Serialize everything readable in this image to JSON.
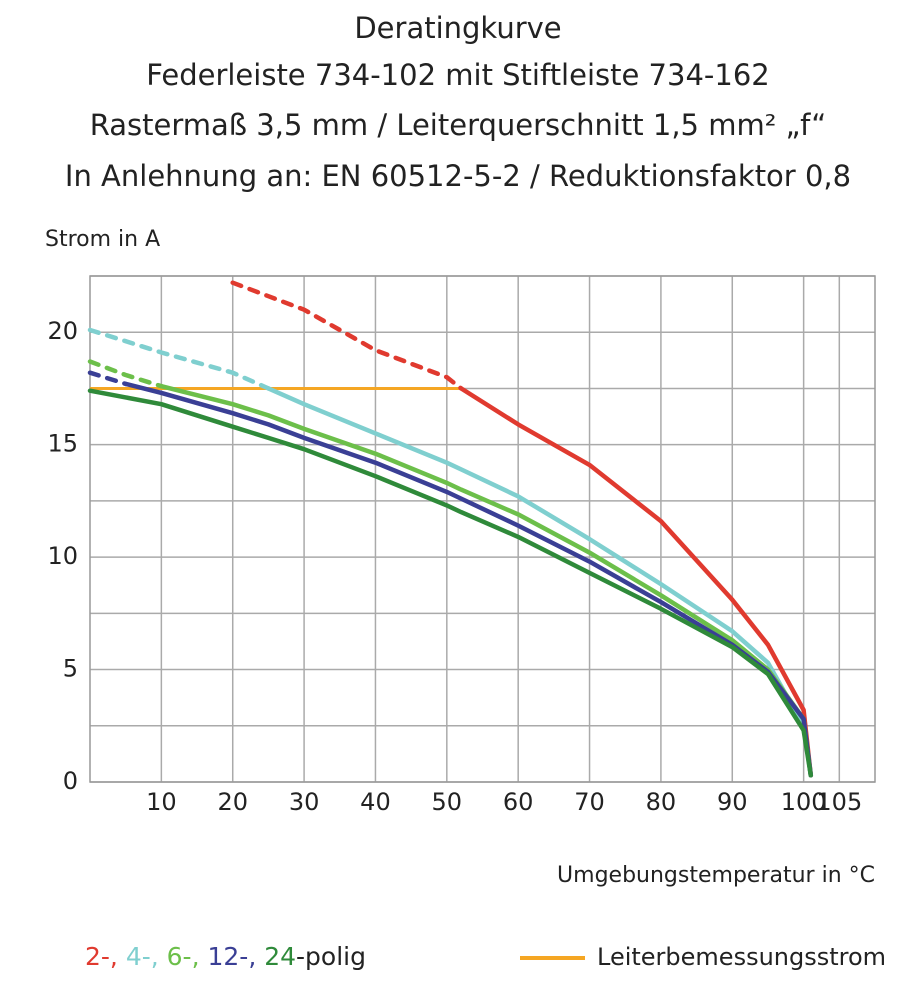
{
  "chart_data": {
    "type": "line",
    "title": [
      "Deratingkurve",
      "Federleiste 734-102 mit Stiftleiste 734-162",
      "Rastermaß 3,5 mm / Leiterquerschnitt 1,5 mm² „f“",
      "In Anlehnung an: EN 60512-5-2 / Reduktionsfaktor 0,8"
    ],
    "ylabel": "Strom in A",
    "xlabel": "Umgebungstemperatur in  °C",
    "x": [
      0,
      5,
      10,
      20,
      25,
      30,
      40,
      50,
      52,
      60,
      70,
      80,
      90,
      95,
      100,
      101
    ],
    "series": [
      {
        "name": "2-,",
        "color": "#e03a2f",
        "dashed_until": 52,
        "values": [
          null,
          null,
          null,
          22.2,
          21.6,
          21.0,
          19.2,
          18.0,
          17.5,
          15.9,
          14.1,
          11.6,
          8.1,
          6.1,
          3.2,
          0.3
        ]
      },
      {
        "name": "4-,",
        "color": "#7fcfcf",
        "dashed_until": 25,
        "values": [
          20.1,
          19.6,
          19.1,
          18.2,
          17.5,
          16.8,
          15.5,
          14.2,
          13.9,
          12.7,
          10.8,
          8.8,
          6.7,
          5.3,
          2.5,
          0.3
        ]
      },
      {
        "name": "6-,",
        "color": "#6cbf4a",
        "dashed_until": 10,
        "values": [
          18.7,
          18.1,
          17.6,
          16.8,
          16.3,
          15.7,
          14.6,
          13.3,
          13.0,
          11.9,
          10.2,
          8.3,
          6.3,
          5.0,
          2.8,
          0.3
        ]
      },
      {
        "name": "12-,",
        "color": "#3a3f95",
        "dashed_until": 5,
        "values": [
          18.2,
          17.7,
          17.3,
          16.4,
          15.9,
          15.3,
          14.2,
          12.9,
          12.6,
          11.4,
          9.8,
          8.0,
          6.1,
          4.9,
          2.8,
          0.3
        ]
      },
      {
        "name": "24",
        "color": "#2f8a3a",
        "values": [
          17.4,
          17.1,
          16.8,
          15.8,
          15.3,
          14.8,
          13.6,
          12.3,
          12.0,
          10.9,
          9.3,
          7.7,
          6.0,
          4.8,
          2.3,
          0.3
        ]
      }
    ],
    "legend_suffix": "-polig",
    "reference_line": {
      "name": "Leiterbemessungsstrom",
      "color": "#f5a623",
      "x": [
        0,
        52
      ],
      "values": [
        17.5,
        17.5
      ]
    },
    "xlim": [
      0,
      110
    ],
    "xticks": [
      10,
      20,
      30,
      40,
      50,
      60,
      70,
      80,
      90,
      100,
      105
    ],
    "ylim": [
      0,
      22.5
    ],
    "yticks": [
      0,
      5,
      10,
      15,
      20
    ],
    "minor_yticks": [
      2.5,
      7.5,
      12.5,
      17.5,
      22.5
    ],
    "grid": true
  }
}
